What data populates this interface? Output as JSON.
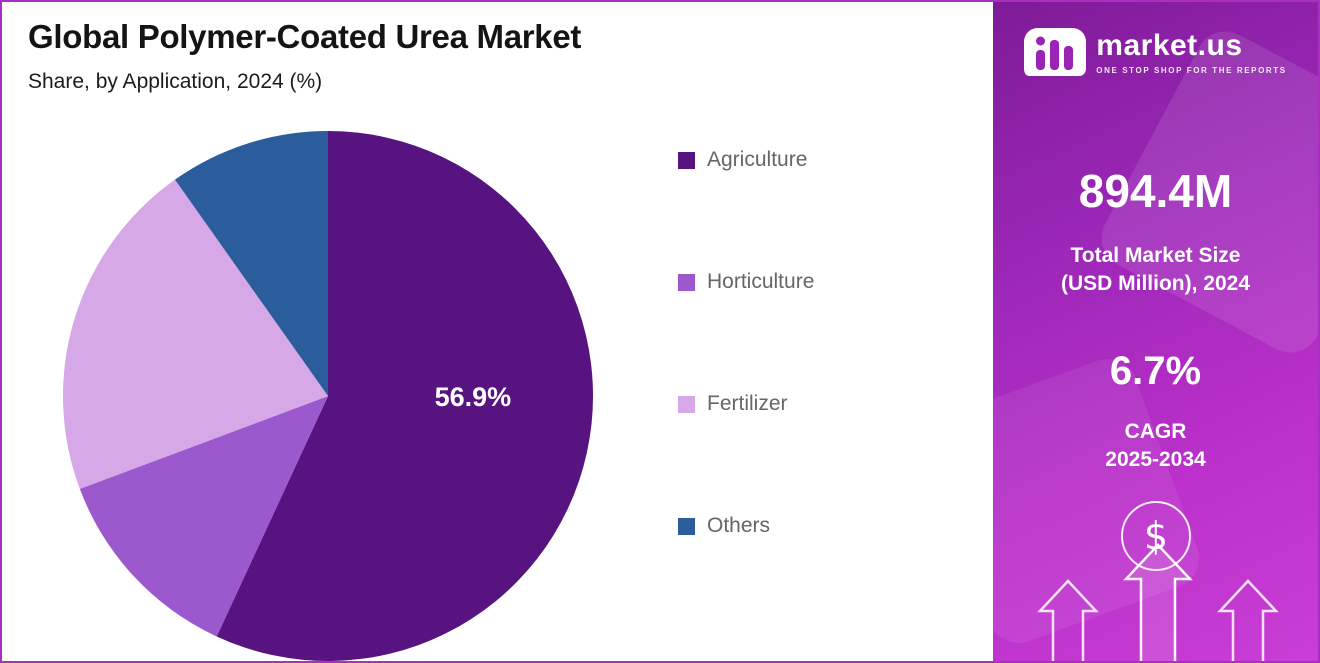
{
  "page": {
    "title": "Global Polymer-Coated Urea Market",
    "subtitle": "Share, by Application, 2024 (%)"
  },
  "chart_data": {
    "type": "pie",
    "title": "Global Polymer-Coated Urea Market Share, by Application, 2024 (%)",
    "labels": [
      "Agriculture",
      "Horticulture",
      "Fertilizer",
      "Others"
    ],
    "values": [
      56.9,
      12.4,
      20.9,
      9.8
    ],
    "colors": [
      "#571380",
      "#9c59ce",
      "#d7a8e8",
      "#2b5c9b"
    ],
    "start_angle_deg": 0,
    "direction": "clockwise",
    "legend_position": "right",
    "labeled_slice": {
      "index": 0,
      "text": "56.9%"
    }
  },
  "legend": {
    "items": [
      {
        "label": "Agriculture",
        "color": "#571380"
      },
      {
        "label": "Horticulture",
        "color": "#9c59ce"
      },
      {
        "label": "Fertilizer",
        "color": "#d7a8e8"
      },
      {
        "label": "Others",
        "color": "#2b5c9b"
      }
    ]
  },
  "sidebar": {
    "brand": {
      "name": "market.us",
      "tagline": "ONE STOP SHOP FOR THE REPORTS"
    },
    "market_size": {
      "value": "894.4M",
      "label_line1": "Total Market Size",
      "label_line2": "(USD Million), 2024"
    },
    "cagr": {
      "value": "6.7%",
      "label": "CAGR",
      "period": "2025-2034"
    },
    "dollar_symbol": "$"
  }
}
